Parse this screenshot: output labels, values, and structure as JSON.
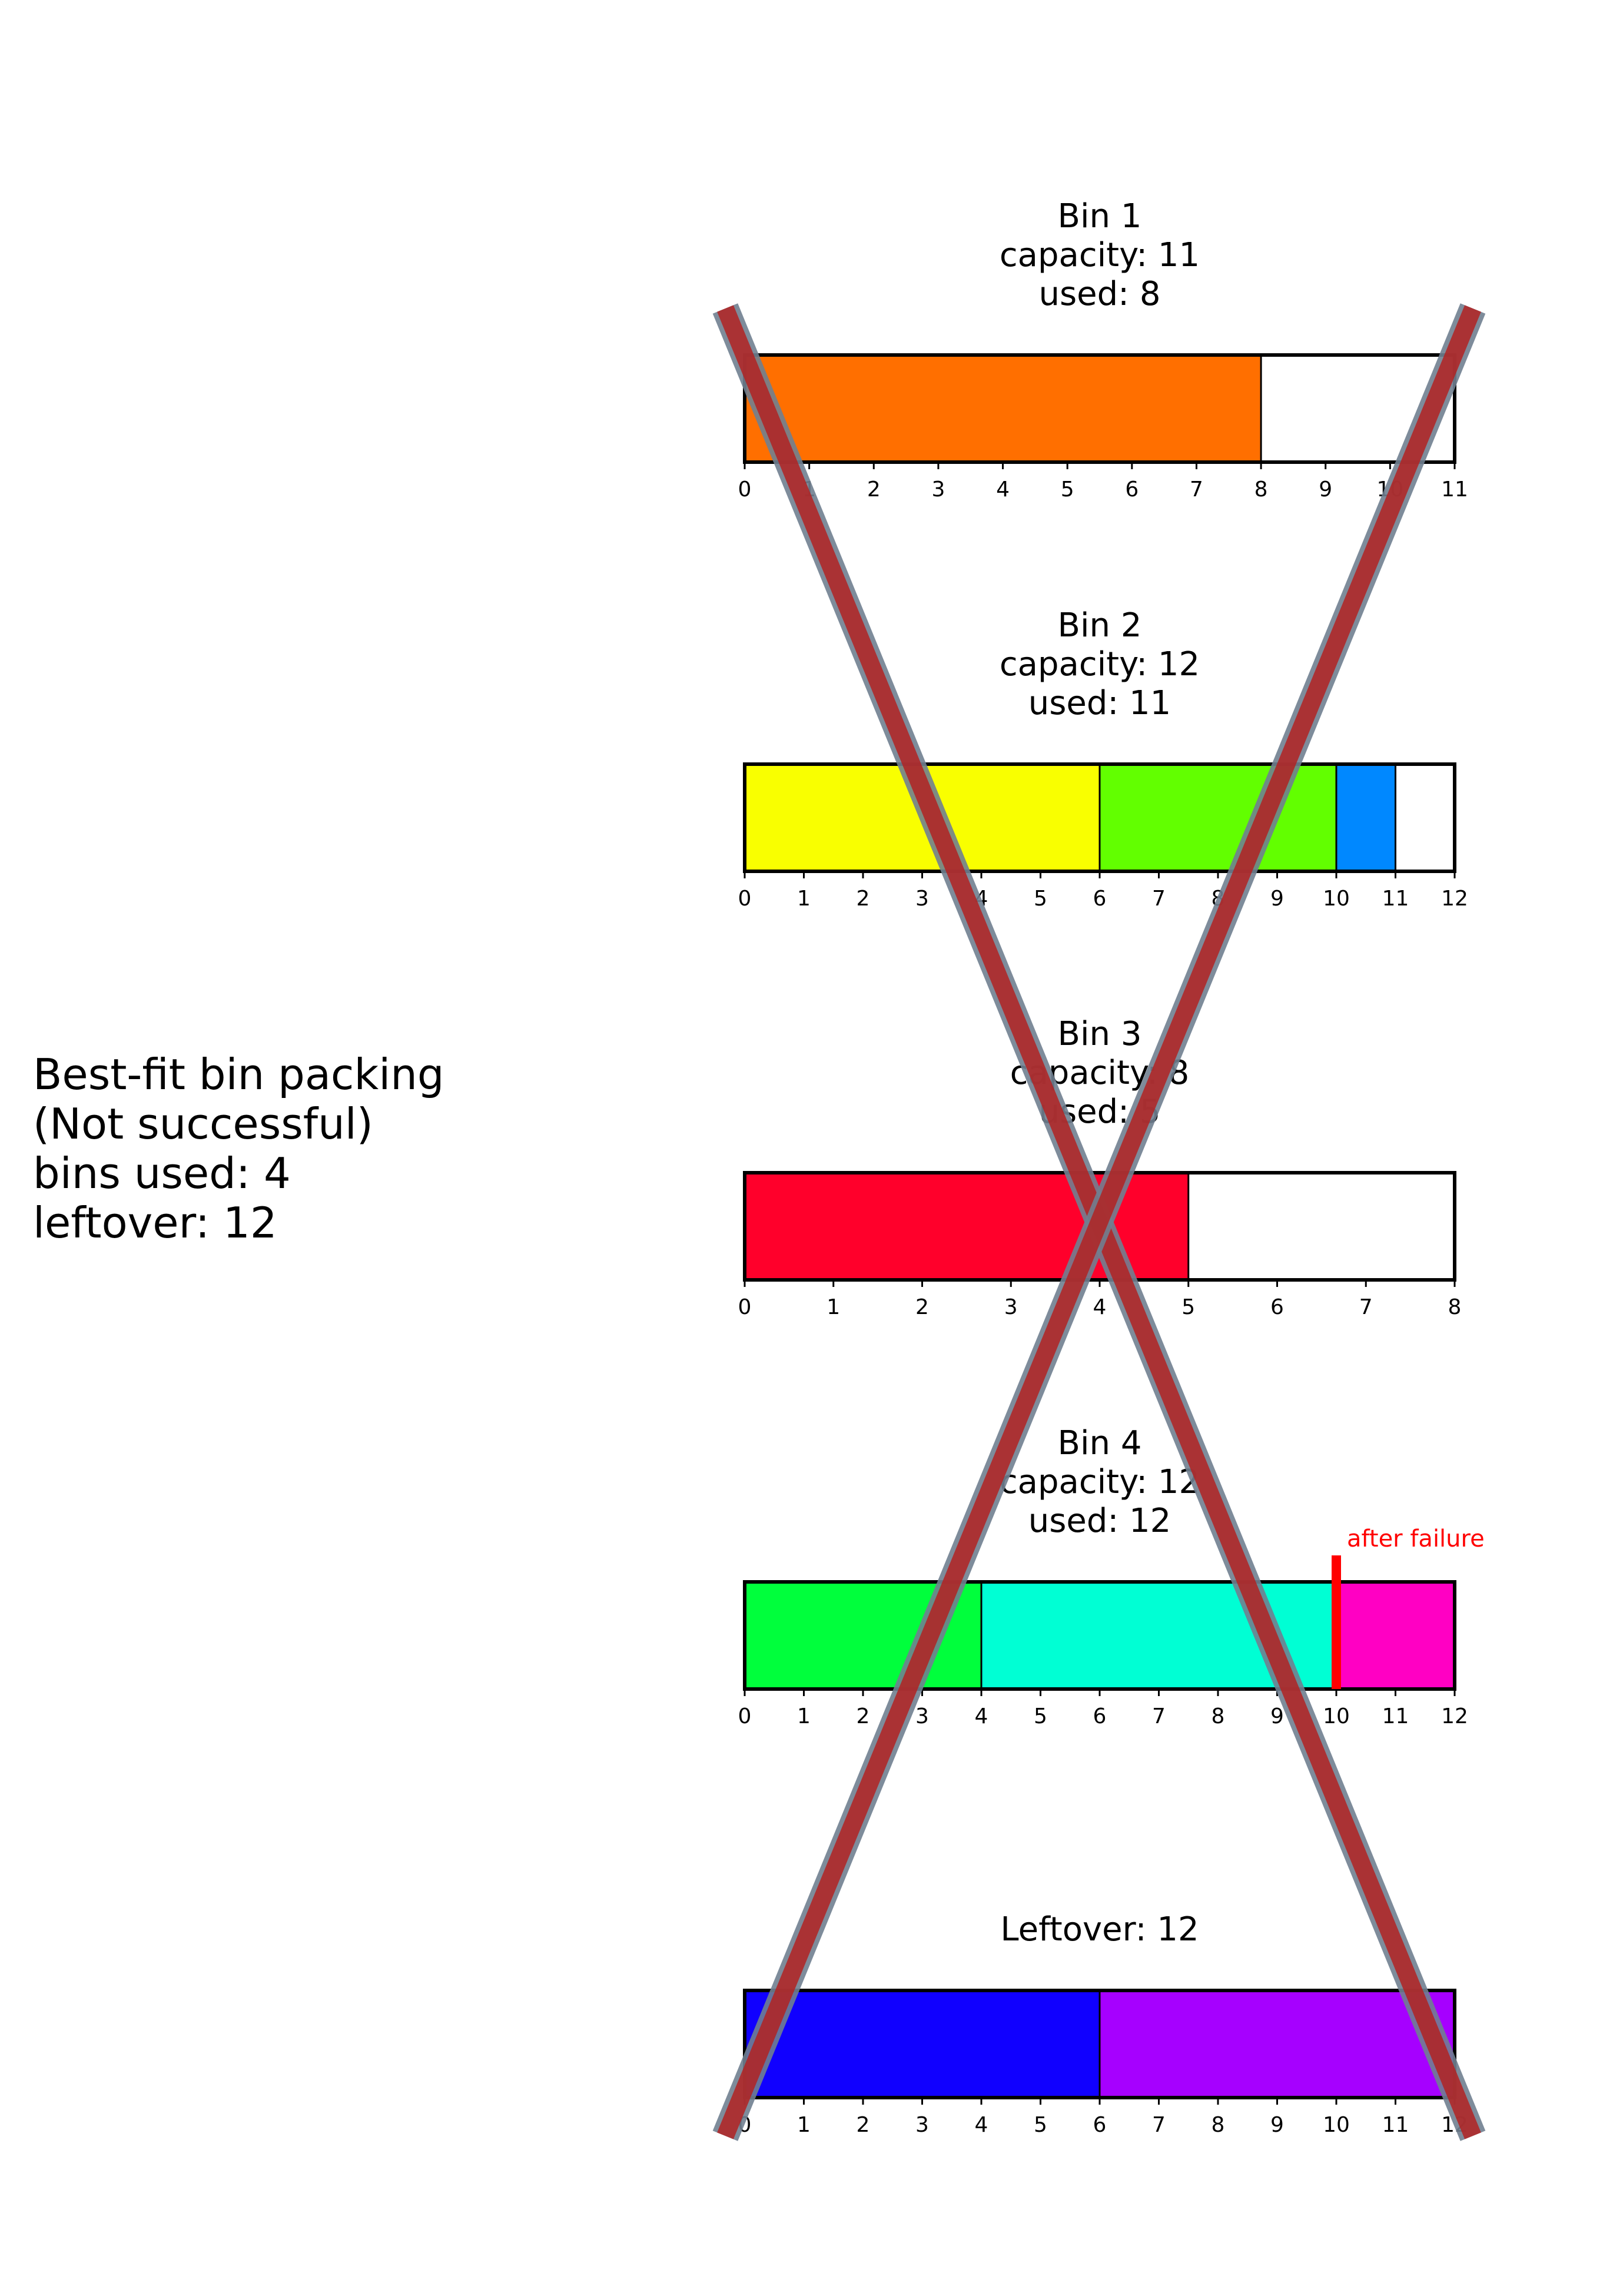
{
  "summary": {
    "lines": [
      "Best-fit bin packing",
      "(Not successful)",
      "bins used: 4",
      "leftover: 12"
    ]
  },
  "chart_data": [
    {
      "type": "bar",
      "orientation": "horizontal-stacked",
      "title_lines": [
        "Bin 1",
        "capacity: 11",
        "used: 8"
      ],
      "xlim": [
        0,
        11
      ],
      "ticks": [
        0,
        1,
        2,
        3,
        4,
        5,
        6,
        7,
        8,
        9,
        10,
        11
      ],
      "segments": [
        {
          "start": 0,
          "end": 8,
          "color": "#ff6f00"
        }
      ]
    },
    {
      "type": "bar",
      "orientation": "horizontal-stacked",
      "title_lines": [
        "Bin 2",
        "capacity: 12",
        "used: 11"
      ],
      "xlim": [
        0,
        12
      ],
      "ticks": [
        0,
        1,
        2,
        3,
        4,
        5,
        6,
        7,
        8,
        9,
        10,
        11,
        12
      ],
      "segments": [
        {
          "start": 0,
          "end": 6,
          "color": "#f9ff00"
        },
        {
          "start": 6,
          "end": 10,
          "color": "#62ff00"
        },
        {
          "start": 10,
          "end": 11,
          "color": "#0088ff"
        }
      ]
    },
    {
      "type": "bar",
      "orientation": "horizontal-stacked",
      "title_lines": [
        "Bin 3",
        "capacity: 8",
        "used: 5"
      ],
      "xlim": [
        0,
        8
      ],
      "ticks": [
        0,
        1,
        2,
        3,
        4,
        5,
        6,
        7,
        8
      ],
      "segments": [
        {
          "start": 0,
          "end": 5,
          "color": "#ff002b"
        }
      ]
    },
    {
      "type": "bar",
      "orientation": "horizontal-stacked",
      "title_lines": [
        "Bin 4",
        "capacity: 12",
        "used: 12"
      ],
      "xlim": [
        0,
        12
      ],
      "ticks": [
        0,
        1,
        2,
        3,
        4,
        5,
        6,
        7,
        8,
        9,
        10,
        11,
        12
      ],
      "segments": [
        {
          "start": 0,
          "end": 4,
          "color": "#00ff3c"
        },
        {
          "start": 4,
          "end": 10,
          "color": "#00ffd4"
        },
        {
          "start": 10,
          "end": 12,
          "color": "#ff00c3"
        }
      ],
      "marker": {
        "at": 10,
        "label": "after failure",
        "color": "#ff0000"
      }
    },
    {
      "type": "bar",
      "orientation": "horizontal-stacked",
      "title_lines": [
        "Leftover: 12"
      ],
      "xlim": [
        0,
        12
      ],
      "ticks": [
        0,
        1,
        2,
        3,
        4,
        5,
        6,
        7,
        8,
        9,
        10,
        11,
        12
      ],
      "segments": [
        {
          "start": 0,
          "end": 6,
          "color": "#1000ff"
        },
        {
          "start": 6,
          "end": 12,
          "color": "#a600ff"
        }
      ]
    }
  ],
  "overlay": {
    "shape": "cross",
    "color": "#b22222",
    "edge_color": "#708090",
    "meaning": "failure"
  }
}
